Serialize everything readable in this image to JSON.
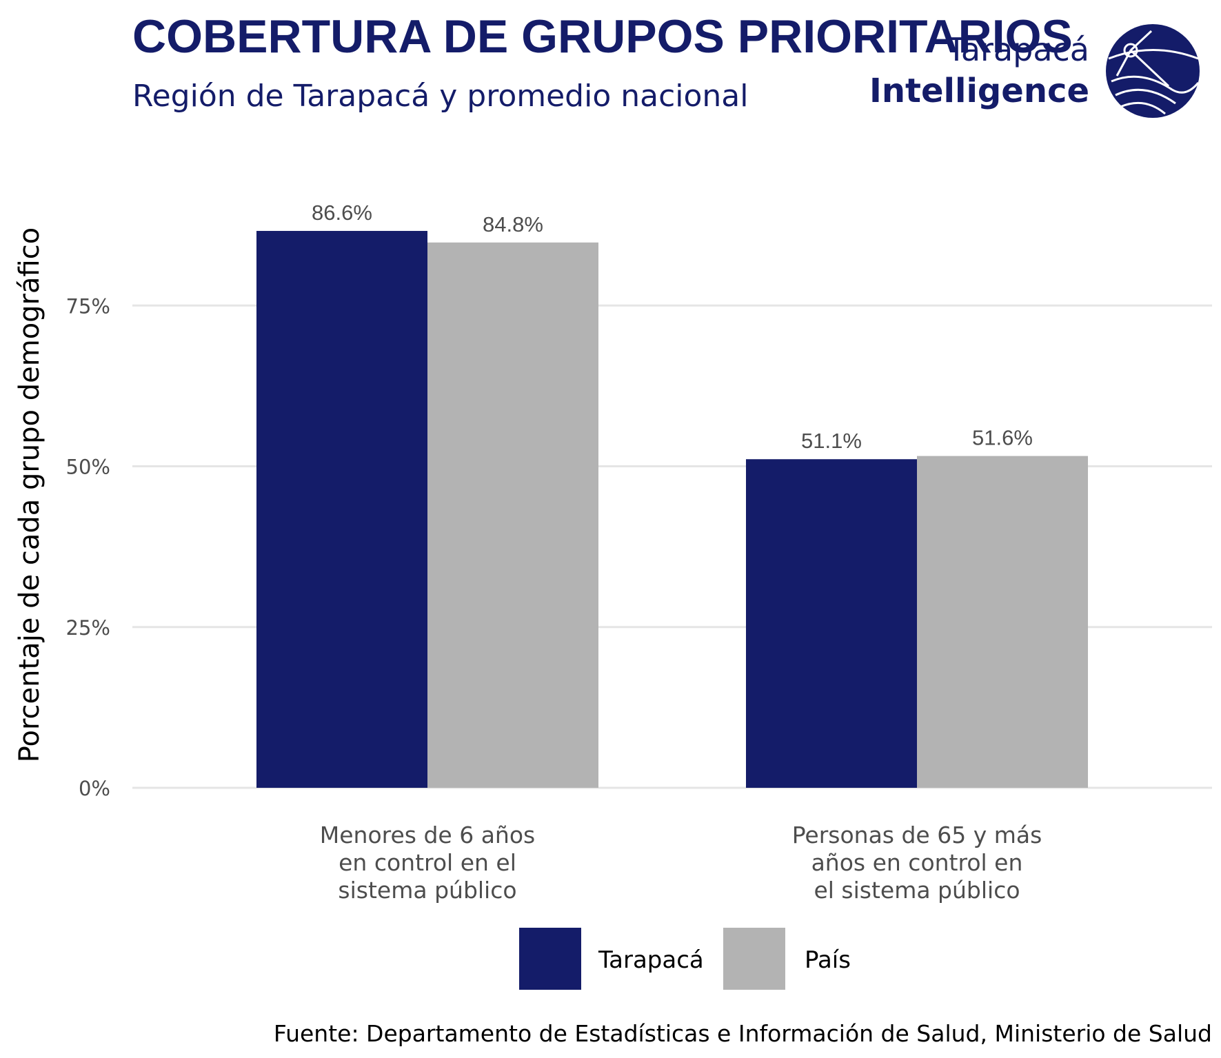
{
  "title": "COBERTURA DE GRUPOS PRIORITARIOS",
  "subtitle": "Región de Tarapacá y promedio nacional",
  "brand": {
    "line1": "Tarapacá",
    "line2": "Intelligence"
  },
  "caption": "Fuente: Departamento de Estadísticas e Información de Salud, Ministerio de Salud",
  "colors": {
    "Tarapacá": "#141c69",
    "País": "#b3b3b3",
    "accent": "#141c69"
  },
  "chart_data": {
    "type": "bar",
    "categories": [
      [
        "Menores de 6 años",
        "en control en el",
        "sistema público"
      ],
      [
        "Personas de 65 y más",
        "años en control en",
        "el sistema público"
      ]
    ],
    "series": [
      {
        "name": "Tarapacá",
        "values": [
          86.6,
          51.1
        ],
        "labels": [
          "86.6%",
          "51.1%"
        ]
      },
      {
        "name": "País",
        "values": [
          84.8,
          51.6
        ],
        "labels": [
          "84.8%",
          "51.6%"
        ]
      }
    ],
    "ylabel": "Porcentaje de cada grupo demográfico",
    "ylim": [
      0,
      100
    ],
    "yticks": [
      0,
      25,
      50,
      75
    ],
    "ytick_labels": [
      "0%",
      "25%",
      "50%",
      "75%"
    ],
    "grid": true,
    "legend": "bottom"
  }
}
